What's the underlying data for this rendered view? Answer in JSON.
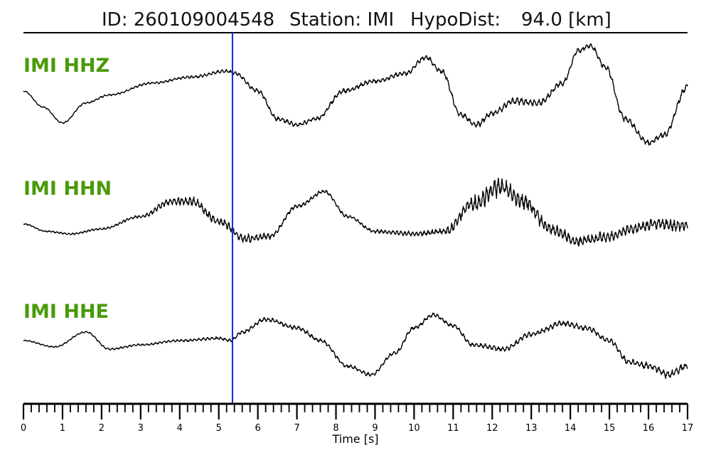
{
  "header": {
    "id_label": "ID: 260109004548",
    "station_label": "Station: IMI",
    "hypodist_label": "HypoDist:",
    "hypodist_value": "94.0 [km]"
  },
  "colors": {
    "channel_label": "#4a9a0a",
    "trace": "#000000",
    "pick_line": "#1f1fdd"
  },
  "chart_data": {
    "type": "line",
    "xlabel": "Time [s]",
    "xlim": [
      0,
      17
    ],
    "x_ticks": [
      0,
      1,
      2,
      3,
      4,
      5,
      6,
      7,
      8,
      9,
      10,
      11,
      12,
      13,
      14,
      15,
      16,
      17
    ],
    "minor_tick_step": 0.2,
    "pick_time": 5.35,
    "grid": false,
    "series": [
      {
        "name": "IMI HHZ",
        "noise": [
          [
            0,
            0.3
          ],
          [
            3.5,
            0.6
          ],
          [
            5,
            0.9
          ],
          [
            6.5,
            1.2
          ],
          [
            9,
            1.2
          ],
          [
            11.5,
            1.4
          ],
          [
            12.5,
            2.0
          ],
          [
            14,
            1.4
          ],
          [
            16,
            1.6
          ],
          [
            17,
            1.6
          ]
        ],
        "noise_freq": 9,
        "points": [
          [
            0,
            0.0
          ],
          [
            0.5,
            -0.4
          ],
          [
            1.0,
            -0.8
          ],
          [
            1.6,
            -0.3
          ],
          [
            2.2,
            -0.1
          ],
          [
            3.3,
            0.2
          ],
          [
            4.3,
            0.35
          ],
          [
            5.2,
            0.5
          ],
          [
            5.4,
            0.45
          ],
          [
            6.0,
            0.0
          ],
          [
            6.5,
            -0.7
          ],
          [
            7.0,
            -0.85
          ],
          [
            7.5,
            -0.7
          ],
          [
            8.2,
            0.0
          ],
          [
            9.0,
            0.25
          ],
          [
            9.8,
            0.45
          ],
          [
            10.3,
            0.85
          ],
          [
            10.7,
            0.5
          ],
          [
            11.2,
            -0.6
          ],
          [
            11.6,
            -0.85
          ],
          [
            12.0,
            -0.55
          ],
          [
            12.6,
            -0.25
          ],
          [
            13.2,
            -0.3
          ],
          [
            13.8,
            0.2
          ],
          [
            14.2,
            1.0
          ],
          [
            14.5,
            1.15
          ],
          [
            14.9,
            0.6
          ],
          [
            15.4,
            -0.7
          ],
          [
            16.0,
            -1.3
          ],
          [
            16.4,
            -1.1
          ],
          [
            17.0,
            0.1
          ]
        ]
      },
      {
        "name": "IMI HHN",
        "noise": [
          [
            0,
            0.3
          ],
          [
            3,
            0.8
          ],
          [
            4,
            2.5
          ],
          [
            5,
            2.2
          ],
          [
            5.5,
            2.5
          ],
          [
            6.5,
            1.2
          ],
          [
            8.5,
            0.8
          ],
          [
            10.5,
            1.5
          ],
          [
            11.5,
            4.0
          ],
          [
            12.2,
            5.5
          ],
          [
            13,
            3.5
          ],
          [
            14.5,
            2.5
          ],
          [
            15.5,
            2.5
          ],
          [
            16.5,
            3.5
          ],
          [
            17,
            3.5
          ]
        ],
        "noise_freq": 10,
        "points": [
          [
            0,
            -0.1
          ],
          [
            0.6,
            -0.25
          ],
          [
            1.2,
            -0.3
          ],
          [
            2.0,
            -0.2
          ],
          [
            3.0,
            0.05
          ],
          [
            3.8,
            0.35
          ],
          [
            4.3,
            0.35
          ],
          [
            5.0,
            -0.05
          ],
          [
            5.7,
            -0.4
          ],
          [
            6.3,
            -0.35
          ],
          [
            7.0,
            0.25
          ],
          [
            7.7,
            0.55
          ],
          [
            8.3,
            0.05
          ],
          [
            9.0,
            -0.25
          ],
          [
            10.0,
            -0.3
          ],
          [
            10.8,
            -0.25
          ],
          [
            11.5,
            0.3
          ],
          [
            12.2,
            0.65
          ],
          [
            12.8,
            0.35
          ],
          [
            13.5,
            -0.2
          ],
          [
            14.2,
            -0.45
          ],
          [
            15.0,
            -0.35
          ],
          [
            15.6,
            -0.2
          ],
          [
            16.2,
            -0.1
          ],
          [
            17.0,
            -0.15
          ]
        ]
      },
      {
        "name": "IMI HHE",
        "noise": [
          [
            0,
            0.3
          ],
          [
            3,
            0.6
          ],
          [
            5,
            0.8
          ],
          [
            6,
            1.2
          ],
          [
            9,
            1.0
          ],
          [
            11,
            1.0
          ],
          [
            13,
            1.5
          ],
          [
            15,
            1.5
          ],
          [
            16,
            2.0
          ],
          [
            17,
            2.0
          ]
        ],
        "noise_freq": 9,
        "points": [
          [
            0,
            0.05
          ],
          [
            0.8,
            -0.1
          ],
          [
            1.6,
            0.25
          ],
          [
            2.2,
            -0.15
          ],
          [
            3.0,
            -0.05
          ],
          [
            4.0,
            0.05
          ],
          [
            5.0,
            0.1
          ],
          [
            5.3,
            0.05
          ],
          [
            5.6,
            0.25
          ],
          [
            6.2,
            0.55
          ],
          [
            7.0,
            0.35
          ],
          [
            7.6,
            0.05
          ],
          [
            8.3,
            -0.55
          ],
          [
            8.9,
            -0.75
          ],
          [
            9.5,
            -0.25
          ],
          [
            10.0,
            0.35
          ],
          [
            10.5,
            0.65
          ],
          [
            11.0,
            0.4
          ],
          [
            11.5,
            -0.05
          ],
          [
            12.3,
            -0.15
          ],
          [
            13.0,
            0.2
          ],
          [
            13.8,
            0.45
          ],
          [
            14.4,
            0.35
          ],
          [
            15.0,
            0.05
          ],
          [
            15.5,
            -0.45
          ],
          [
            16.0,
            -0.55
          ],
          [
            16.5,
            -0.75
          ],
          [
            17.0,
            -0.55
          ]
        ]
      }
    ]
  }
}
